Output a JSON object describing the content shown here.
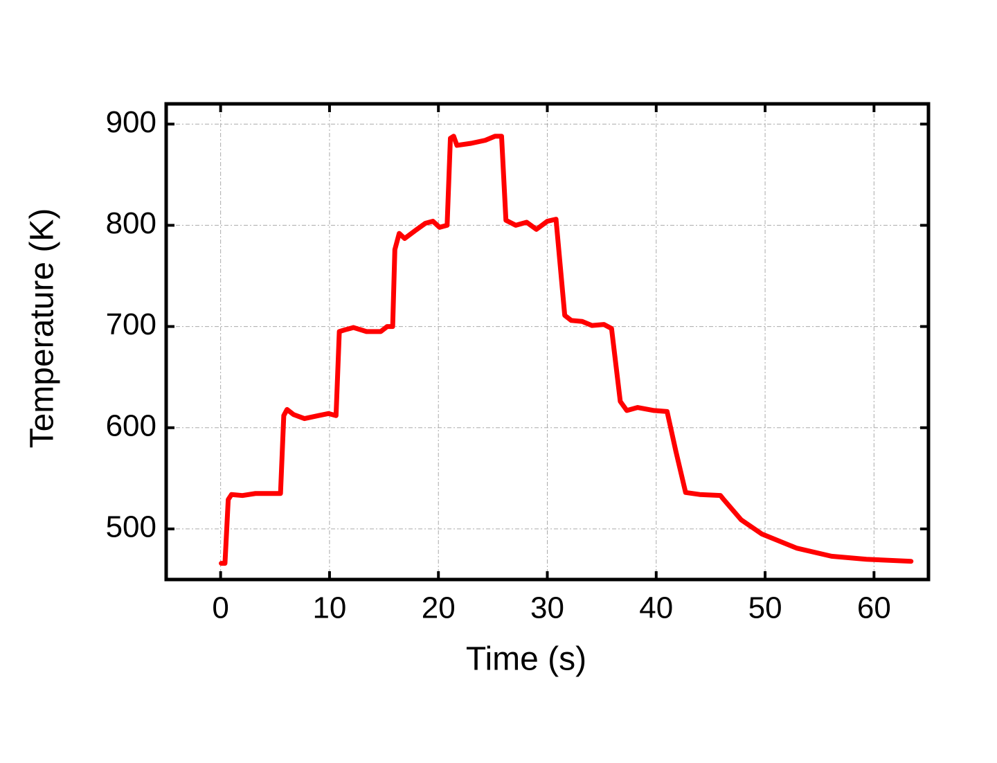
{
  "chart_data": {
    "type": "line",
    "xlabel": "Time (s)",
    "ylabel": "Temperature (K)",
    "xlim": [
      -5,
      65
    ],
    "ylim": [
      450,
      920
    ],
    "xticks": [
      0,
      10,
      20,
      30,
      40,
      50,
      60
    ],
    "yticks": [
      500,
      600,
      700,
      800,
      900
    ],
    "grid": true,
    "series": [
      {
        "color": "#ff0000",
        "x": [
          0.06,
          0.4,
          0.7,
          1.0,
          2,
          3.2,
          4.5,
          5.5,
          5.8,
          6.1,
          6.7,
          7.7,
          9,
          9.9,
          10.6,
          10.9,
          11.5,
          12.2,
          13.4,
          14.7,
          15.3,
          15.8,
          16.0,
          16.4,
          16.9,
          17.9,
          18.8,
          19.5,
          20.1,
          20.8,
          21.1,
          21.4,
          21.7,
          23.0,
          24.3,
          25.2,
          25.8,
          26.2,
          27.1,
          28.1,
          29.0,
          30,
          30.8,
          31.6,
          32.2,
          33.2,
          34.1,
          35.2,
          35.9,
          36.7,
          37.3,
          38.3,
          39.8,
          41.0,
          41.8,
          42.7,
          44.0,
          45.9,
          46.2,
          47.8,
          49.7,
          52.9,
          56.1,
          59.3,
          63.4
        ],
        "values": [
          466,
          466,
          529,
          534,
          533,
          535,
          535,
          535,
          612,
          618,
          613,
          609,
          612,
          614,
          612,
          695,
          697,
          699,
          695,
          695,
          700,
          700,
          776,
          792,
          787,
          795,
          802,
          804,
          798,
          800,
          886,
          888,
          879,
          881,
          884,
          888,
          888,
          805,
          800,
          803,
          796,
          804,
          806,
          711,
          706,
          705,
          701,
          702,
          698,
          626,
          617,
          620,
          617,
          616,
          577,
          536,
          534,
          533,
          529,
          509,
          495,
          481,
          473,
          470,
          468
        ]
      }
    ]
  }
}
